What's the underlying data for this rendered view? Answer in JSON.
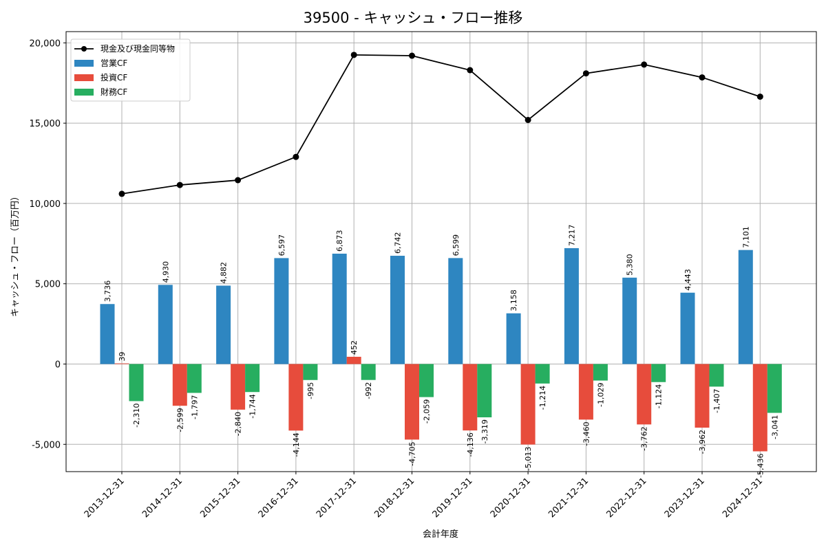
{
  "chart_data": {
    "type": "bar",
    "title": "39500 - キャッシュ・フロー推移",
    "xlabel": "会計年度",
    "ylabel": "キャッシュ・フロー（百万円）",
    "categories": [
      "2013-12-31",
      "2014-12-31",
      "2015-12-31",
      "2016-12-31",
      "2017-12-31",
      "2018-12-31",
      "2019-12-31",
      "2020-12-31",
      "2021-12-31",
      "2022-12-31",
      "2023-12-31",
      "2024-12-31"
    ],
    "series": [
      {
        "name": "営業CF",
        "kind": "bar",
        "color": "#2e86c1",
        "values": [
          3736,
          4930,
          4882,
          6597,
          6873,
          6742,
          6599,
          3158,
          7217,
          5380,
          4443,
          7101
        ],
        "labels": [
          "3,736",
          "4,930",
          "4,882",
          "6,597",
          "6,873",
          "6,742",
          "6,599",
          "3,158",
          "7,217",
          "5,380",
          "4,443",
          "7,101"
        ]
      },
      {
        "name": "投資CF",
        "kind": "bar",
        "color": "#e74c3c",
        "values": [
          39,
          -2599,
          -2840,
          -4144,
          452,
          -4705,
          -4136,
          -5013,
          -3460,
          -3762,
          -3962,
          -5436
        ],
        "labels": [
          "39",
          "-2,599",
          "-2,840",
          "-4,144",
          "452",
          "-4,705",
          "-4,136",
          "-5,013",
          "-3,460",
          "-3,762",
          "-3,962",
          "-5,436"
        ]
      },
      {
        "name": "財務CF",
        "kind": "bar",
        "color": "#27ae60",
        "values": [
          -2310,
          -1797,
          -1744,
          -995,
          -992,
          -2059,
          -3319,
          -1214,
          -1029,
          -1124,
          -1407,
          -3041
        ],
        "labels": [
          "-2,310",
          "-1,797",
          "-1,744",
          "-995",
          "-992",
          "-2,059",
          "-3,319",
          "-1,214",
          "-1,029",
          "-1,124",
          "-1,407",
          "-3,041"
        ]
      },
      {
        "name": "現金及び現金同等物",
        "kind": "line",
        "color": "#000000",
        "values": [
          10600,
          11150,
          11450,
          12900,
          19250,
          19200,
          18300,
          15200,
          18100,
          18650,
          17850,
          16650
        ]
      }
    ],
    "yticks": [
      -5000,
      0,
      5000,
      10000,
      15000,
      20000
    ],
    "ytick_labels": [
      "-5,000",
      "0",
      "5,000",
      "10,000",
      "15,000",
      "20,000"
    ],
    "ylim": [
      -6700,
      20700
    ],
    "grid": true,
    "legend_position": "top-left"
  }
}
